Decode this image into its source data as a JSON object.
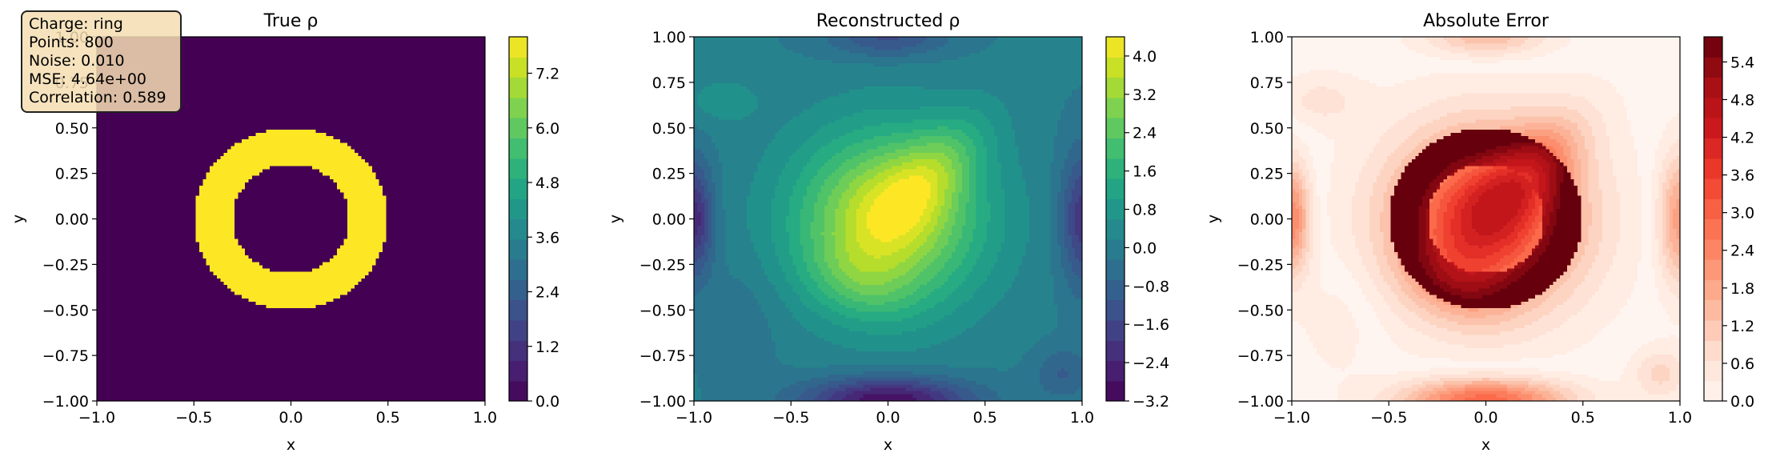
{
  "info_box": {
    "lines": [
      "Charge: ring",
      "Points: 800",
      "Noise: 0.010",
      "MSE: 4.64e+00",
      "Correlation: 0.589"
    ]
  },
  "chart_data": [
    {
      "type": "heatmap",
      "title": "True ρ",
      "xlabel": "x",
      "ylabel": "y",
      "xlim": [
        -1.0,
        1.0
      ],
      "ylim": [
        -1.0,
        1.0
      ],
      "xticks": [
        "−1.0",
        "−0.5",
        "0.0",
        "0.5",
        "1.0"
      ],
      "yticks": [
        "−1.00",
        "−0.75",
        "−0.50",
        "−0.25",
        "0.00",
        "0.25",
        "0.50",
        "0.75",
        "1.00"
      ],
      "colormap": "viridis",
      "colorbar": {
        "min": 0.0,
        "max": 8.0,
        "ticks": [
          "0.0",
          "1.2",
          "2.4",
          "3.6",
          "4.8",
          "6.0",
          "7.2"
        ],
        "tick_values": [
          0.0,
          1.2,
          2.4,
          3.6,
          4.8,
          6.0,
          7.2
        ]
      },
      "field": {
        "shape": "ring",
        "inner_radius": 0.3,
        "outer_radius": 0.5,
        "value_inside_ring": 8.0,
        "value_outside": 0.0
      }
    },
    {
      "type": "heatmap",
      "title": "Reconstructed ρ",
      "xlabel": "x",
      "ylabel": "y",
      "xlim": [
        -1.0,
        1.0
      ],
      "ylim": [
        -1.0,
        1.0
      ],
      "xticks": [
        "−1.0",
        "−0.5",
        "0.0",
        "0.5",
        "1.0"
      ],
      "yticks": [
        "−1.00",
        "−0.75",
        "−0.50",
        "−0.25",
        "0.00",
        "0.25",
        "0.50",
        "0.75",
        "1.00"
      ],
      "colormap": "viridis",
      "colorbar": {
        "min": -3.2,
        "max": 4.4,
        "ticks": [
          "−3.2",
          "−2.4",
          "−1.6",
          "−0.8",
          "0.0",
          "0.8",
          "1.6",
          "2.4",
          "3.2",
          "4.0"
        ],
        "tick_values": [
          -3.2,
          -2.4,
          -1.6,
          -0.8,
          0.0,
          0.8,
          1.6,
          2.4,
          3.2,
          4.0
        ]
      },
      "field": {
        "shape": "smooth_blob",
        "peak_value": 4.3,
        "peak_location": [
          0.2,
          0.25
        ],
        "min_value": -3.2,
        "background_value": 0.0
      }
    },
    {
      "type": "heatmap",
      "title": "Absolute Error",
      "xlabel": "x",
      "ylabel": "y",
      "xlim": [
        -1.0,
        1.0
      ],
      "ylim": [
        -1.0,
        1.0
      ],
      "xticks": [
        "−1.0",
        "−0.5",
        "0.0",
        "0.5",
        "1.0"
      ],
      "yticks": [
        "−1.00",
        "−0.75",
        "−0.50",
        "−0.25",
        "0.00",
        "0.25",
        "0.50",
        "0.75",
        "1.00"
      ],
      "colormap": "reds",
      "colorbar": {
        "min": 0.0,
        "max": 5.8,
        "ticks": [
          "0.0",
          "0.6",
          "1.2",
          "1.8",
          "2.4",
          "3.0",
          "3.6",
          "4.2",
          "4.8",
          "5.4"
        ],
        "tick_values": [
          0.0,
          0.6,
          1.2,
          1.8,
          2.4,
          3.0,
          3.6,
          4.2,
          4.8,
          5.4
        ]
      },
      "field": {
        "shape": "abs_difference",
        "max_value": 5.8,
        "max_location": "ring"
      }
    }
  ]
}
